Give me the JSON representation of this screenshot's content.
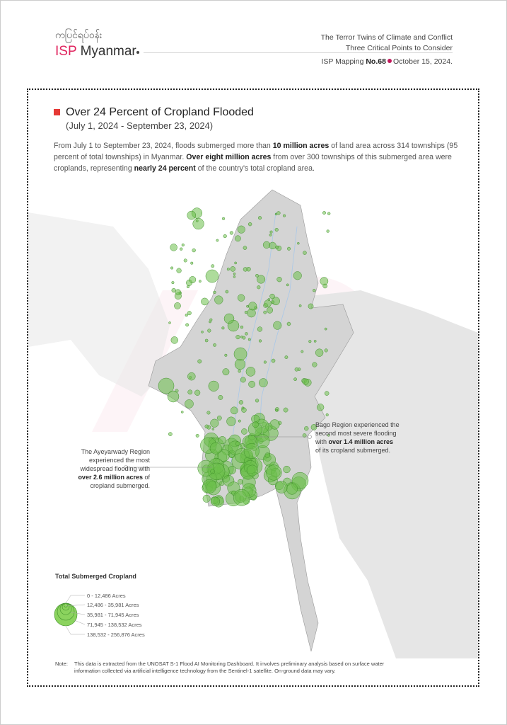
{
  "header": {
    "logo_myanmar_script": "ကပြင်ရပ်ဝန်း",
    "logo_isp": "ISP",
    "logo_name": "Myanmar",
    "report_title_line1": "The Terror Twins of Climate and Conflict",
    "report_title_line2": "Three Critical Points to Consider",
    "series_prefix": "ISP Mapping",
    "series_number": "No.68",
    "date": "October 15, 2024."
  },
  "section": {
    "title": "Over 24 Percent of Cropland Flooded",
    "subtitle": "(July 1, 2024 - September 23, 2024)",
    "paragraph": [
      {
        "text": "From July 1 to September 23, 2024, floods submerged more than ",
        "bold": false
      },
      {
        "text": "10 million acres",
        "bold": true
      },
      {
        "text": " of land area across 314 townships (95 percent of total townships) in Myanmar. ",
        "bold": false
      },
      {
        "text": "Over eight million acres",
        "bold": true
      },
      {
        "text": " from over 300 townships of this submerged area were croplands, representing ",
        "bold": false
      },
      {
        "text": "nearly 24 percent",
        "bold": true
      },
      {
        "text": " of the country's total cropland area.",
        "bold": false
      }
    ]
  },
  "callouts": {
    "ayeyarwady": {
      "pre": "The Ayeyarwady Region experienced the most widespread flooding with ",
      "bold": "over 2.6 million acres",
      "post": " of cropland submerged."
    },
    "bago": {
      "pre": "Bago Region experienced the second most severe flooding with ",
      "bold": "over 1.4 million acres",
      "post": " of its cropland submerged."
    }
  },
  "legend": {
    "title": "Total Submerged Cropland",
    "items": [
      "0 - 12,486 Acres",
      "12,486 - 35,981 Acres",
      "35,981 - 71,945 Acres",
      "71,945 - 138,532 Acres",
      "138,532 - 256,876 Acres"
    ]
  },
  "note": {
    "label": "Note:",
    "text": "This data is extracted from the UNOSAT S-1 Flood AI Monitoring Dashboard. It involves preliminary analysis based on surface water information collected via artificial intelligence technology from the Sentinel-1 satellite. On-ground data may vary."
  },
  "colors": {
    "brand_pink": "#e0245e",
    "title_marker": "#e53935",
    "flood_circle": "#6cc04a",
    "flood_circle_stroke": "#3f8f2a",
    "land": "#d9d9d9"
  }
}
